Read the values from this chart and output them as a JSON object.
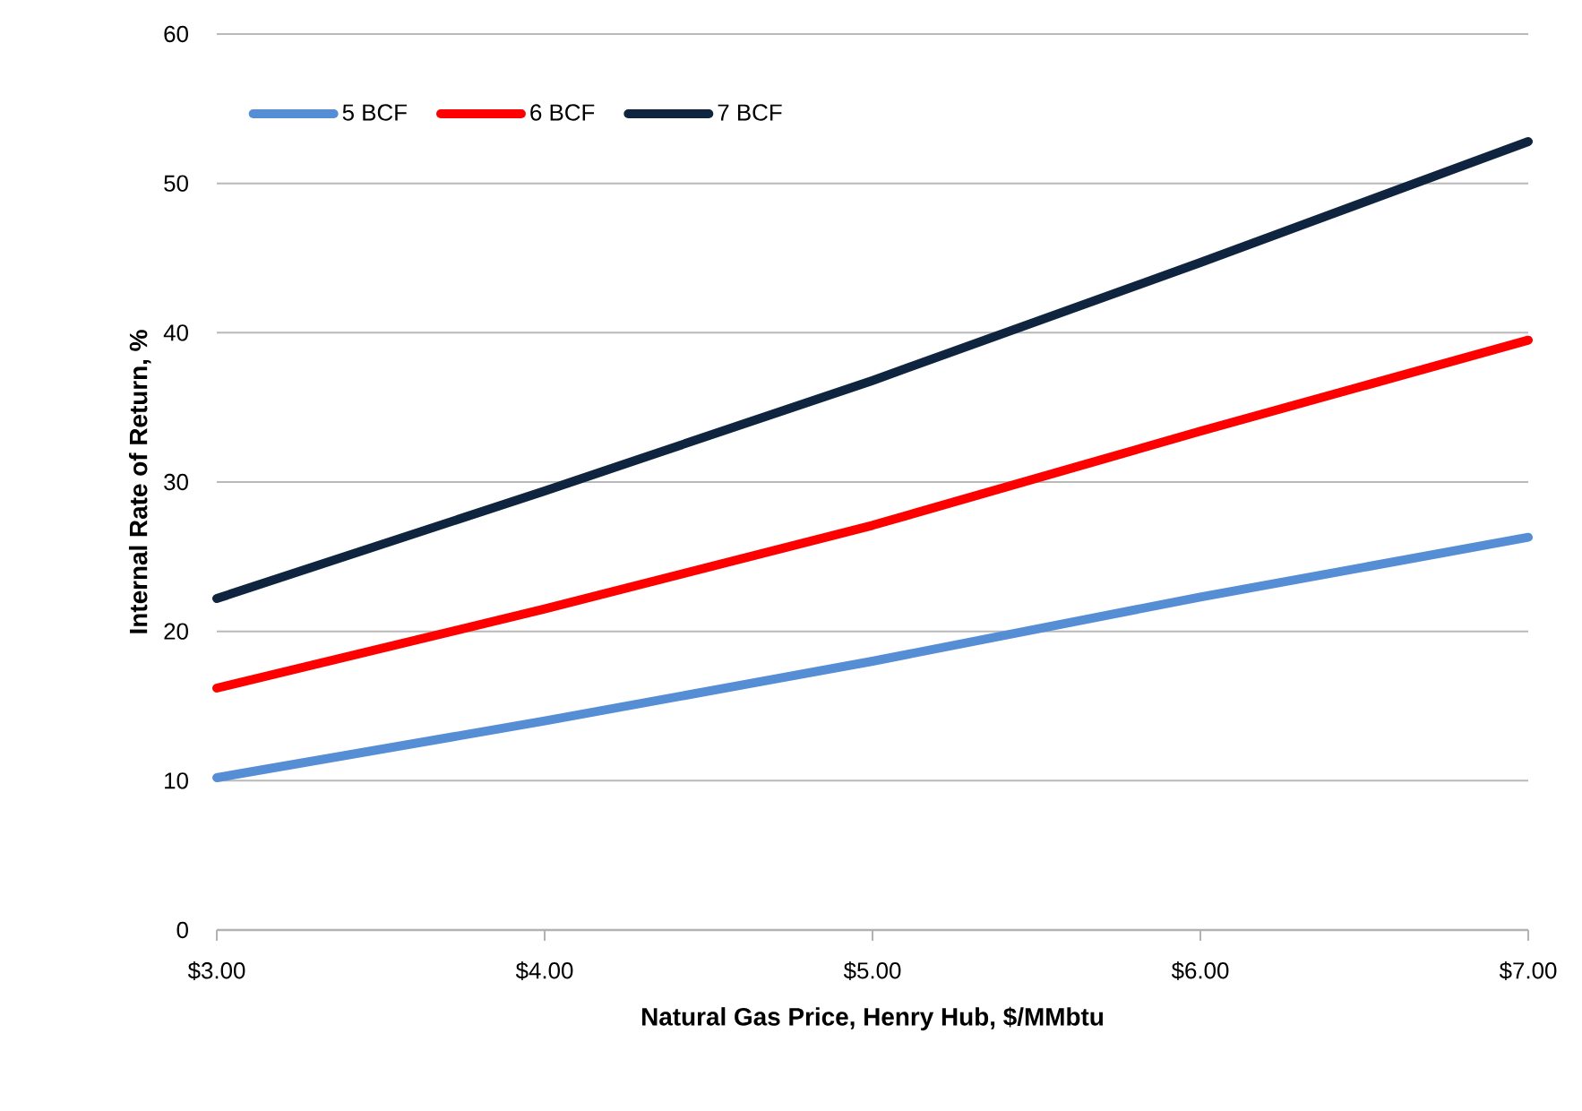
{
  "chart_data": {
    "type": "line",
    "xlabel": "Natural Gas Price, Henry Hub, $/MMbtu",
    "ylabel": "Internal Rate of Return, %",
    "x": [
      3,
      4,
      5,
      6,
      7
    ],
    "series": [
      {
        "name": "5 BCF",
        "color": "#558ed5",
        "values": [
          10.2,
          14.0,
          18.0,
          22.3,
          26.3
        ]
      },
      {
        "name": "6 BCF",
        "color": "#ff0000",
        "values": [
          16.2,
          21.5,
          27.1,
          33.4,
          39.5
        ]
      },
      {
        "name": "7 BCF",
        "color": "#0f243e",
        "values": [
          22.2,
          29.4,
          36.8,
          44.7,
          52.8
        ]
      }
    ],
    "xlim": [
      3,
      7
    ],
    "xticks": [
      {
        "value": 3,
        "label": "$3.00"
      },
      {
        "value": 4,
        "label": "$4.00"
      },
      {
        "value": 5,
        "label": "$5.00"
      },
      {
        "value": 6,
        "label": "$6.00"
      },
      {
        "value": 7,
        "label": "$7.00"
      }
    ],
    "ylim": [
      0,
      60
    ],
    "yticks": [
      0,
      10,
      20,
      30,
      40,
      50,
      60
    ],
    "grid": "y",
    "legend": "top left",
    "marker": "none",
    "line_style": "solid"
  }
}
